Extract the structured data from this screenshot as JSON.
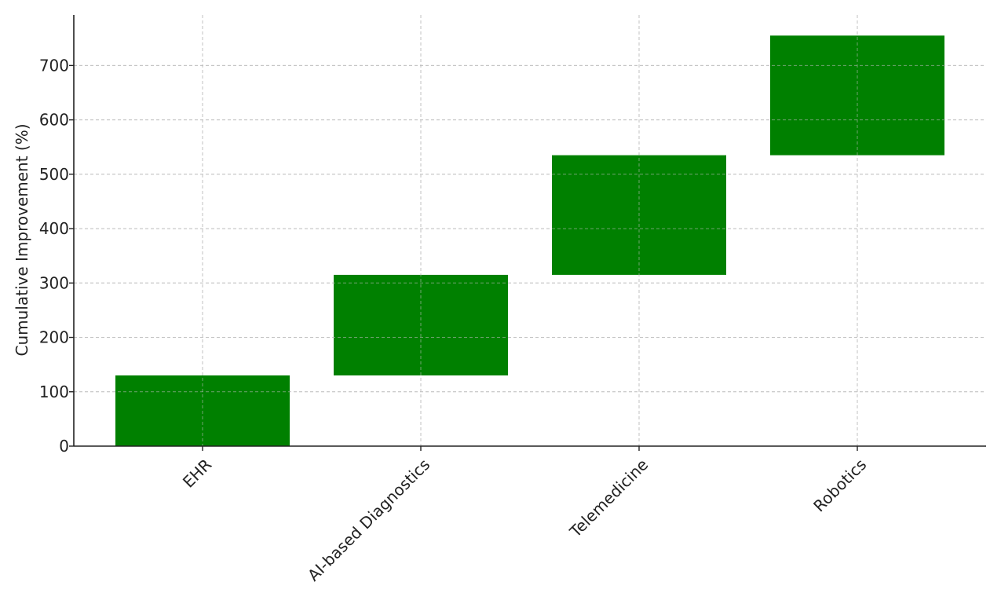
{
  "chart_data": {
    "type": "bar",
    "subtype": "waterfall",
    "title": "",
    "xlabel": "",
    "ylabel": "Cumulative Improvement (%)",
    "categories": [
      "EHR",
      "AI-based Diagnostics",
      "Telemedicine",
      "Robotics"
    ],
    "values": [
      130,
      185,
      220,
      220
    ],
    "bases": [
      0,
      130,
      315,
      535
    ],
    "ylim": [
      0,
      793
    ],
    "yticks": [
      0,
      100,
      200,
      300,
      400,
      500,
      600,
      700
    ],
    "grid": true,
    "bar_color": "#008000",
    "xtick_rotation": 45
  }
}
